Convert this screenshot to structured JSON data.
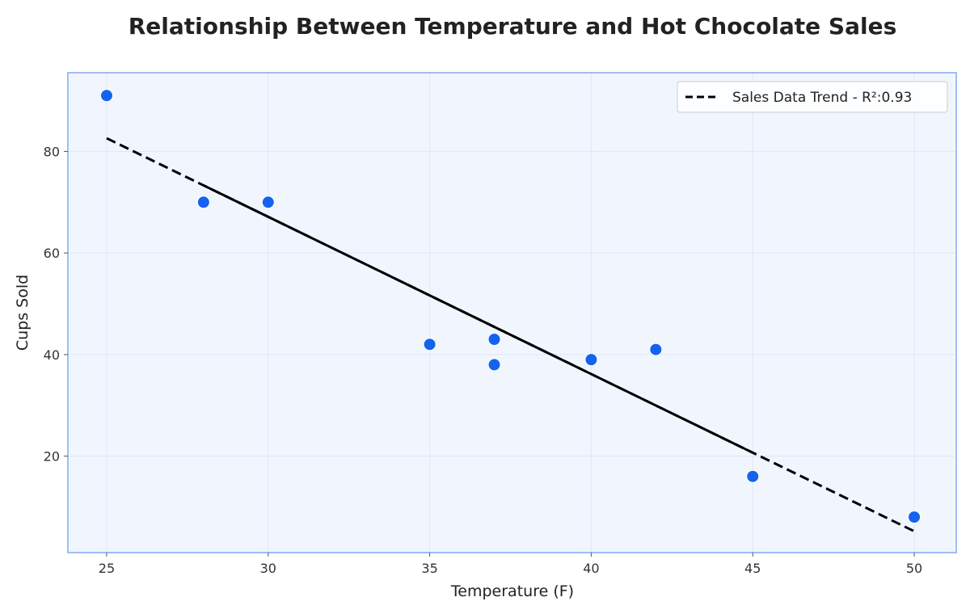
{
  "chart_data": {
    "type": "scatter",
    "title": "Relationship Between Temperature and Hot Chocolate Sales",
    "xlabel": "Temperature (F)",
    "ylabel": "Cups Sold",
    "xlim": [
      23.8,
      51.3
    ],
    "ylim": [
      1,
      95.5
    ],
    "xticks": [
      25,
      30,
      35,
      40,
      45,
      50
    ],
    "yticks": [
      20,
      40,
      60,
      80
    ],
    "grid": true,
    "legend_position": "top-right",
    "series": [
      {
        "type": "scatter",
        "x": [
          25,
          28,
          30,
          35,
          37,
          37,
          40,
          42,
          45,
          50
        ],
        "y": [
          91,
          70,
          70,
          42,
          43,
          38,
          39,
          41,
          16,
          8
        ]
      }
    ],
    "trend": {
      "name": "Sales Data Trend - R²:0.93",
      "x": [
        25,
        50
      ],
      "y": [
        82.6,
        5.2
      ],
      "solid_range": [
        28,
        45
      ]
    },
    "colors": {
      "points": "#1463ee",
      "trend": "#000000",
      "plot_background": "#f1f6fe",
      "plot_border": "#a0bdf5",
      "grid": "#dce7fb"
    }
  }
}
